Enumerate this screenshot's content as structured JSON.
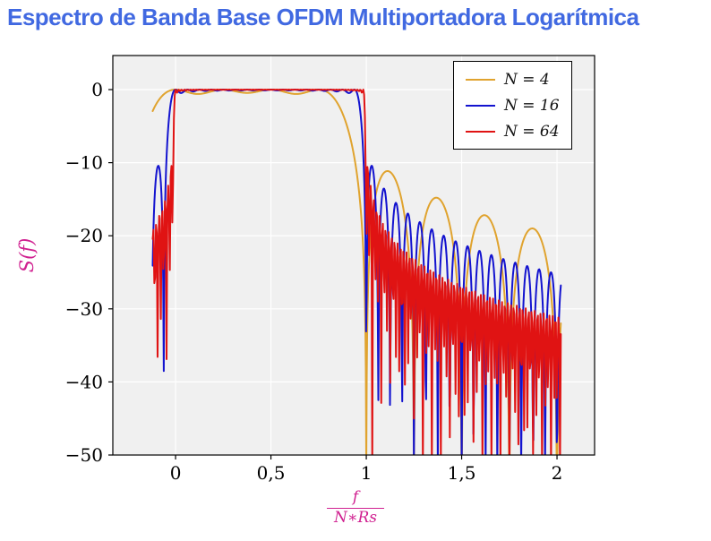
{
  "chart_data": {
    "type": "line",
    "title": "Espectro de Banda Base OFDM Multiportadora Logarítmica",
    "title_color": "#4169e1",
    "ylabel": "S(f)",
    "xlabel_numerator": "f",
    "xlabel_denominator": "N∗Rs",
    "axis_label_color": "#d02090",
    "xlim": [
      -0.329,
      2.197
    ],
    "ylim": [
      -50,
      4.66
    ],
    "x_ticks": [
      0,
      0.5,
      1,
      1.5,
      2
    ],
    "x_tick_labels": [
      "0",
      "0,5",
      "1",
      "1,5",
      "2"
    ],
    "y_ticks": [
      0,
      -10,
      -20,
      -30,
      -40,
      -50
    ],
    "y_tick_labels": [
      "0",
      "−10",
      "−20",
      "−30",
      "−40",
      "−50"
    ],
    "grid": true,
    "plot_background": "#f0f0f0",
    "grid_color": "#ffffff",
    "axis_color": "#000000",
    "legend_position": "top right",
    "x_range_data": [
      -0.12,
      2.02
    ],
    "clip_floor_db": -50,
    "model": "S(x) = 10*log10( sum_{k=0}^{N-1} sinc^2(N*x - k) ) with sinc(u)=sin(pi*u)/(pi*u), x = f/(N*Rs); passband 0<=x<=1 flat at 0 dB, sidelobe nulls at x=m/N, curve clipped at -50 dB",
    "series": [
      {
        "label": "N = 4",
        "N": 4,
        "color": "#e0a32e",
        "samples": 900
      },
      {
        "label": "N = 16",
        "N": 16,
        "color": "#1313cf",
        "samples": 700
      },
      {
        "label": "N = 64",
        "N": 64,
        "color": "#e01313",
        "samples": 500
      }
    ]
  }
}
